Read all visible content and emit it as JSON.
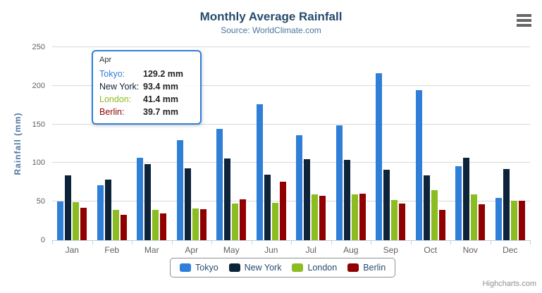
{
  "header": {
    "title": "Monthly Average Rainfall",
    "subtitle": "Source: WorldClimate.com"
  },
  "chart_data": {
    "type": "bar",
    "title": "Monthly Average Rainfall",
    "subtitle": "Source: WorldClimate.com",
    "categories": [
      "Jan",
      "Feb",
      "Mar",
      "Apr",
      "May",
      "Jun",
      "Jul",
      "Aug",
      "Sep",
      "Oct",
      "Nov",
      "Dec"
    ],
    "series": [
      {
        "name": "Tokyo",
        "color": "#2f7ed8",
        "values": [
          49.9,
          71.5,
          106.4,
          129.2,
          144.0,
          176.0,
          135.6,
          148.5,
          216.4,
          194.1,
          95.6,
          54.4
        ]
      },
      {
        "name": "New York",
        "color": "#0d233a",
        "values": [
          83.6,
          78.8,
          98.5,
          93.4,
          106.0,
          84.5,
          105.0,
          104.3,
          91.2,
          83.5,
          106.6,
          92.3
        ]
      },
      {
        "name": "London",
        "color": "#8bbc21",
        "values": [
          48.9,
          38.8,
          39.3,
          41.4,
          47.0,
          48.3,
          59.0,
          59.6,
          52.4,
          65.2,
          59.3,
          51.2
        ]
      },
      {
        "name": "Berlin",
        "color": "#910000",
        "values": [
          42.4,
          33.2,
          34.5,
          39.7,
          52.6,
          75.5,
          57.4,
          60.4,
          47.6,
          39.1,
          46.8,
          51.1
        ]
      }
    ],
    "xlabel": "",
    "ylabel": "Rainfall (mm)",
    "ylim": [
      0,
      250
    ],
    "yticks": [
      0,
      50,
      100,
      150,
      200,
      250
    ],
    "grid": true,
    "legend_position": "bottom-center"
  },
  "tooltip": {
    "header": "Apr",
    "border_color": "#2f7ed8",
    "rows": [
      {
        "name": "Tokyo:",
        "value": "129.2 mm",
        "color": "#2f7ed8"
      },
      {
        "name": "New York:",
        "value": "93.4 mm",
        "color": "#0d233a"
      },
      {
        "name": "London:",
        "value": "41.4 mm",
        "color": "#8bbc21"
      },
      {
        "name": "Berlin:",
        "value": "39.7 mm",
        "color": "#910000"
      }
    ]
  },
  "legend": {
    "items": [
      {
        "label": "Tokyo",
        "color": "#2f7ed8"
      },
      {
        "label": "New York",
        "color": "#0d233a"
      },
      {
        "label": "London",
        "color": "#8bbc21"
      },
      {
        "label": "Berlin",
        "color": "#910000"
      }
    ]
  },
  "credits": "Highcharts.com",
  "colors": {
    "title": "#274b6d",
    "subtitle": "#4d759e",
    "axis_label": "#606060",
    "gridline": "#d8d8d8",
    "axis_line": "#c0d0e0",
    "legend_border": "#909090"
  }
}
